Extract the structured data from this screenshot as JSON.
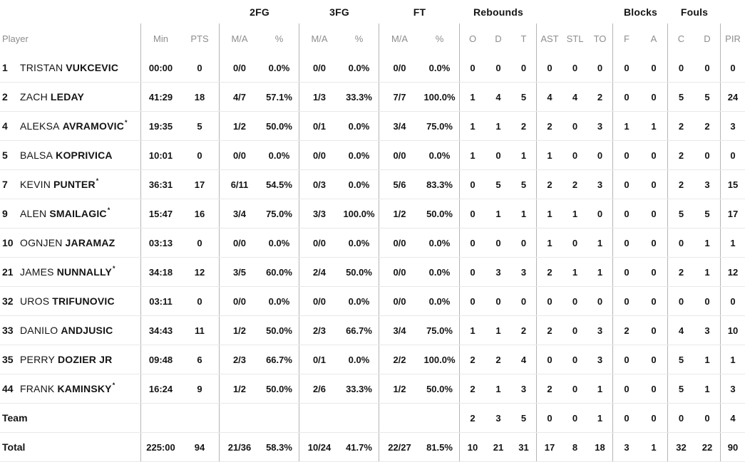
{
  "colors": {
    "text": "#141414",
    "muted_header": "#8d8d92",
    "column_line": "#b5b5b5",
    "row_line": "#e8e8e8",
    "background": "#ffffff"
  },
  "headers": {
    "groups": {
      "fg2": "2FG",
      "fg3": "3FG",
      "ft": "FT",
      "rebounds": "Rebounds",
      "blocks": "Blocks",
      "fouls": "Fouls"
    },
    "cols": {
      "player": "Player",
      "min": "Min",
      "pts": "PTS",
      "ma": "M/A",
      "pct": "%",
      "o": "O",
      "d": "D",
      "t": "T",
      "ast": "AST",
      "stl": "STL",
      "to": "TO",
      "f": "F",
      "a": "A",
      "c": "C",
      "d2": "D",
      "pir": "PIR"
    }
  },
  "rows": [
    {
      "type": "player",
      "num": "1",
      "first": "TRISTAN",
      "last": "VUKCEVIC",
      "starter": false,
      "min": "00:00",
      "pts": "0",
      "fg2_ma": "0/0",
      "fg2_pct": "0.0%",
      "fg3_ma": "0/0",
      "fg3_pct": "0.0%",
      "ft_ma": "0/0",
      "ft_pct": "0.0%",
      "reb_o": "0",
      "reb_d": "0",
      "reb_t": "0",
      "ast": "0",
      "stl": "0",
      "to": "0",
      "blk_f": "0",
      "blk_a": "0",
      "foul_c": "0",
      "foul_d": "0",
      "pir": "0"
    },
    {
      "type": "player",
      "num": "2",
      "first": "ZACH",
      "last": "LEDAY",
      "starter": false,
      "min": "41:29",
      "pts": "18",
      "fg2_ma": "4/7",
      "fg2_pct": "57.1%",
      "fg3_ma": "1/3",
      "fg3_pct": "33.3%",
      "ft_ma": "7/7",
      "ft_pct": "100.0%",
      "reb_o": "1",
      "reb_d": "4",
      "reb_t": "5",
      "ast": "4",
      "stl": "4",
      "to": "2",
      "blk_f": "0",
      "blk_a": "0",
      "foul_c": "5",
      "foul_d": "5",
      "pir": "24"
    },
    {
      "type": "player",
      "num": "4",
      "first": "ALEKSA",
      "last": "AVRAMOVIC",
      "starter": true,
      "min": "19:35",
      "pts": "5",
      "fg2_ma": "1/2",
      "fg2_pct": "50.0%",
      "fg3_ma": "0/1",
      "fg3_pct": "0.0%",
      "ft_ma": "3/4",
      "ft_pct": "75.0%",
      "reb_o": "1",
      "reb_d": "1",
      "reb_t": "2",
      "ast": "2",
      "stl": "0",
      "to": "3",
      "blk_f": "1",
      "blk_a": "1",
      "foul_c": "2",
      "foul_d": "2",
      "pir": "3"
    },
    {
      "type": "player",
      "num": "5",
      "first": "BALSA",
      "last": "KOPRIVICA",
      "starter": false,
      "min": "10:01",
      "pts": "0",
      "fg2_ma": "0/0",
      "fg2_pct": "0.0%",
      "fg3_ma": "0/0",
      "fg3_pct": "0.0%",
      "ft_ma": "0/0",
      "ft_pct": "0.0%",
      "reb_o": "1",
      "reb_d": "0",
      "reb_t": "1",
      "ast": "1",
      "stl": "0",
      "to": "0",
      "blk_f": "0",
      "blk_a": "0",
      "foul_c": "2",
      "foul_d": "0",
      "pir": "0"
    },
    {
      "type": "player",
      "num": "7",
      "first": "KEVIN",
      "last": "PUNTER",
      "starter": true,
      "min": "36:31",
      "pts": "17",
      "fg2_ma": "6/11",
      "fg2_pct": "54.5%",
      "fg3_ma": "0/3",
      "fg3_pct": "0.0%",
      "ft_ma": "5/6",
      "ft_pct": "83.3%",
      "reb_o": "0",
      "reb_d": "5",
      "reb_t": "5",
      "ast": "2",
      "stl": "2",
      "to": "3",
      "blk_f": "0",
      "blk_a": "0",
      "foul_c": "2",
      "foul_d": "3",
      "pir": "15"
    },
    {
      "type": "player",
      "num": "9",
      "first": "ALEN",
      "last": "SMAILAGIC",
      "starter": true,
      "min": "15:47",
      "pts": "16",
      "fg2_ma": "3/4",
      "fg2_pct": "75.0%",
      "fg3_ma": "3/3",
      "fg3_pct": "100.0%",
      "ft_ma": "1/2",
      "ft_pct": "50.0%",
      "reb_o": "0",
      "reb_d": "1",
      "reb_t": "1",
      "ast": "1",
      "stl": "1",
      "to": "0",
      "blk_f": "0",
      "blk_a": "0",
      "foul_c": "5",
      "foul_d": "5",
      "pir": "17"
    },
    {
      "type": "player",
      "num": "10",
      "first": "OGNJEN",
      "last": "JARAMAZ",
      "starter": false,
      "min": "03:13",
      "pts": "0",
      "fg2_ma": "0/0",
      "fg2_pct": "0.0%",
      "fg3_ma": "0/0",
      "fg3_pct": "0.0%",
      "ft_ma": "0/0",
      "ft_pct": "0.0%",
      "reb_o": "0",
      "reb_d": "0",
      "reb_t": "0",
      "ast": "1",
      "stl": "0",
      "to": "1",
      "blk_f": "0",
      "blk_a": "0",
      "foul_c": "0",
      "foul_d": "1",
      "pir": "1"
    },
    {
      "type": "player",
      "num": "21",
      "first": "JAMES",
      "last": "NUNNALLY",
      "starter": true,
      "min": "34:18",
      "pts": "12",
      "fg2_ma": "3/5",
      "fg2_pct": "60.0%",
      "fg3_ma": "2/4",
      "fg3_pct": "50.0%",
      "ft_ma": "0/0",
      "ft_pct": "0.0%",
      "reb_o": "0",
      "reb_d": "3",
      "reb_t": "3",
      "ast": "2",
      "stl": "1",
      "to": "1",
      "blk_f": "0",
      "blk_a": "0",
      "foul_c": "2",
      "foul_d": "1",
      "pir": "12"
    },
    {
      "type": "player",
      "num": "32",
      "first": "UROS",
      "last": "TRIFUNOVIC",
      "starter": false,
      "min": "03:11",
      "pts": "0",
      "fg2_ma": "0/0",
      "fg2_pct": "0.0%",
      "fg3_ma": "0/0",
      "fg3_pct": "0.0%",
      "ft_ma": "0/0",
      "ft_pct": "0.0%",
      "reb_o": "0",
      "reb_d": "0",
      "reb_t": "0",
      "ast": "0",
      "stl": "0",
      "to": "0",
      "blk_f": "0",
      "blk_a": "0",
      "foul_c": "0",
      "foul_d": "0",
      "pir": "0"
    },
    {
      "type": "player",
      "num": "33",
      "first": "DANILO",
      "last": "ANDJUSIC",
      "starter": false,
      "min": "34:43",
      "pts": "11",
      "fg2_ma": "1/2",
      "fg2_pct": "50.0%",
      "fg3_ma": "2/3",
      "fg3_pct": "66.7%",
      "ft_ma": "3/4",
      "ft_pct": "75.0%",
      "reb_o": "1",
      "reb_d": "1",
      "reb_t": "2",
      "ast": "2",
      "stl": "0",
      "to": "3",
      "blk_f": "2",
      "blk_a": "0",
      "foul_c": "4",
      "foul_d": "3",
      "pir": "10"
    },
    {
      "type": "player",
      "num": "35",
      "first": "PERRY",
      "last": "DOZIER JR",
      "starter": false,
      "min": "09:48",
      "pts": "6",
      "fg2_ma": "2/3",
      "fg2_pct": "66.7%",
      "fg3_ma": "0/1",
      "fg3_pct": "0.0%",
      "ft_ma": "2/2",
      "ft_pct": "100.0%",
      "reb_o": "2",
      "reb_d": "2",
      "reb_t": "4",
      "ast": "0",
      "stl": "0",
      "to": "3",
      "blk_f": "0",
      "blk_a": "0",
      "foul_c": "5",
      "foul_d": "1",
      "pir": "1"
    },
    {
      "type": "player",
      "num": "44",
      "first": "FRANK",
      "last": "KAMINSKY",
      "starter": true,
      "min": "16:24",
      "pts": "9",
      "fg2_ma": "1/2",
      "fg2_pct": "50.0%",
      "fg3_ma": "2/6",
      "fg3_pct": "33.3%",
      "ft_ma": "1/2",
      "ft_pct": "50.0%",
      "reb_o": "2",
      "reb_d": "1",
      "reb_t": "3",
      "ast": "2",
      "stl": "0",
      "to": "1",
      "blk_f": "0",
      "blk_a": "0",
      "foul_c": "5",
      "foul_d": "1",
      "pir": "3"
    },
    {
      "type": "team",
      "label": "Team",
      "reb_o": "2",
      "reb_d": "3",
      "reb_t": "5",
      "ast": "0",
      "stl": "0",
      "to": "1",
      "blk_f": "0",
      "blk_a": "0",
      "foul_c": "0",
      "foul_d": "0",
      "pir": "4"
    },
    {
      "type": "total",
      "label": "Total",
      "min": "225:00",
      "pts": "94",
      "fg2_ma": "21/36",
      "fg2_pct": "58.3%",
      "fg3_ma": "10/24",
      "fg3_pct": "41.7%",
      "ft_ma": "22/27",
      "ft_pct": "81.5%",
      "reb_o": "10",
      "reb_d": "21",
      "reb_t": "31",
      "ast": "17",
      "stl": "8",
      "to": "18",
      "blk_f": "3",
      "blk_a": "1",
      "foul_c": "32",
      "foul_d": "22",
      "pir": "90"
    }
  ],
  "starter_mark": "*"
}
